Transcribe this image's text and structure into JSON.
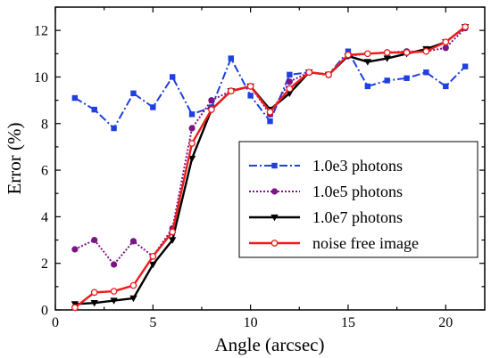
{
  "chart_data": {
    "type": "line",
    "xlabel": "Angle (arcsec)",
    "ylabel": "Error (%)",
    "xlim": [
      0,
      22
    ],
    "ylim": [
      0,
      13
    ],
    "xticks": [
      0,
      5,
      10,
      15,
      20
    ],
    "yticks": [
      0,
      2,
      4,
      6,
      8,
      10,
      12
    ],
    "grid": false,
    "legend_position": "center-right",
    "x": [
      1,
      2,
      3,
      4,
      5,
      6,
      7,
      8,
      9,
      10,
      11,
      12,
      13,
      14,
      15,
      16,
      17,
      18,
      19,
      20,
      21
    ],
    "series": [
      {
        "name": "1.0e3 photons",
        "color": "#1f3fe0",
        "line_style": "dash-dot",
        "marker": "square",
        "values": [
          9.1,
          8.6,
          7.8,
          9.3,
          8.7,
          10.0,
          8.4,
          8.7,
          10.8,
          9.2,
          8.1,
          10.1,
          10.2,
          10.1,
          11.1,
          9.6,
          9.85,
          9.95,
          10.2,
          9.6,
          10.45
        ]
      },
      {
        "name": "1.0e5 photons",
        "color": "#7a1585",
        "line_style": "dotted",
        "marker": "circle",
        "values": [
          2.6,
          3.0,
          1.95,
          2.95,
          2.3,
          3.5,
          7.8,
          9.0,
          9.4,
          9.6,
          8.4,
          9.8,
          10.2,
          10.1,
          10.9,
          11.0,
          11.05,
          11.1,
          11.1,
          11.25,
          12.1
        ]
      },
      {
        "name": "1.0e7 photons",
        "color": "#000000",
        "line_style": "solid",
        "marker": "triangle-down",
        "values": [
          0.25,
          0.3,
          0.4,
          0.5,
          1.95,
          3.0,
          6.5,
          8.6,
          9.4,
          9.6,
          8.6,
          9.3,
          10.2,
          10.1,
          10.9,
          10.65,
          10.8,
          11.0,
          11.2,
          11.5,
          12.15
        ]
      },
      {
        "name": "noise free image",
        "color": "#ee1c1c",
        "line_style": "solid",
        "marker": "open-circle",
        "values": [
          0.1,
          0.75,
          0.8,
          1.05,
          2.3,
          3.35,
          7.15,
          8.6,
          9.4,
          9.6,
          8.5,
          9.5,
          10.2,
          10.1,
          10.95,
          11.0,
          11.05,
          11.05,
          11.1,
          11.5,
          12.15
        ]
      }
    ]
  }
}
